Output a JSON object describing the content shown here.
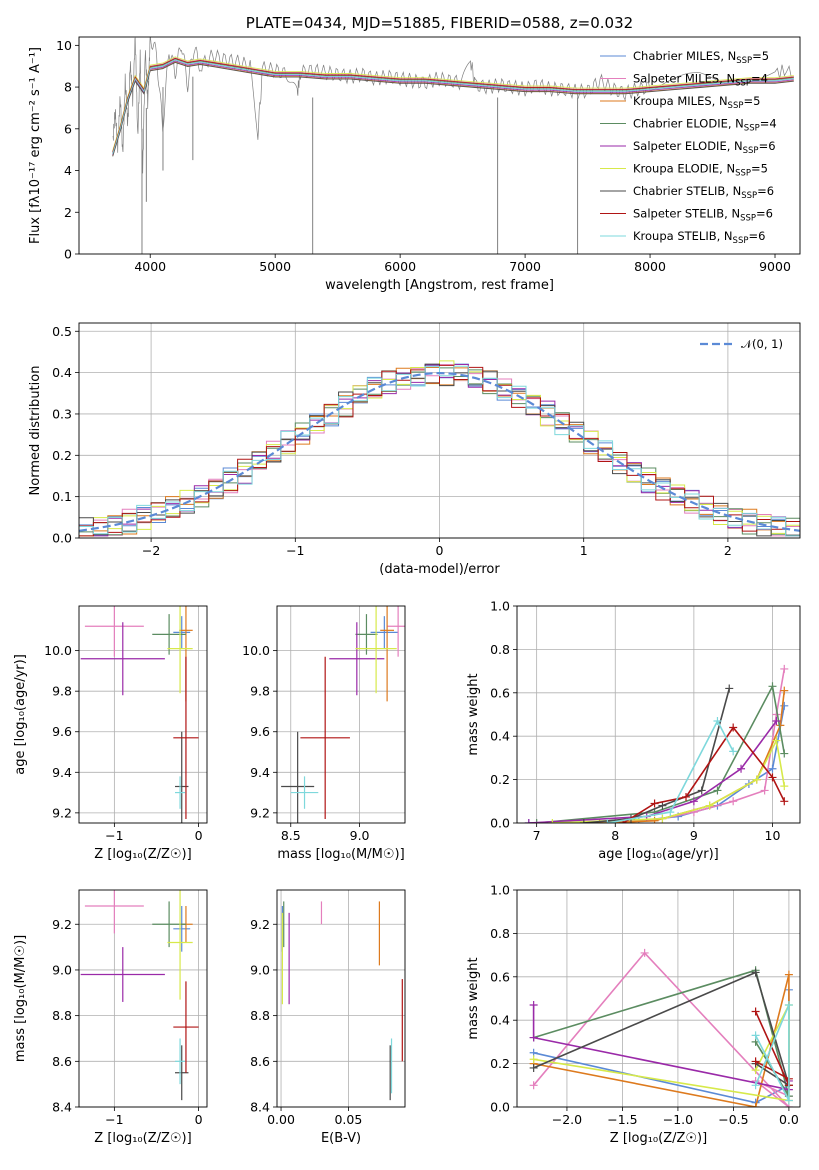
{
  "chart_data": [
    {
      "id": "spectrum",
      "type": "line",
      "title": "PLATE=0434, MJD=51885, FIBERID=0588, z=0.032",
      "xlabel": "wavelength [Angstrom, rest frame]",
      "ylabel": "Flux [fλ10⁻¹⁷ erg cm⁻² s⁻¹ A⁻¹]",
      "xlim": [
        3430,
        9200
      ],
      "ylim": [
        0,
        10.4
      ],
      "xticks": [
        4000,
        5000,
        6000,
        7000,
        8000,
        9000
      ],
      "yticks": [
        0,
        2,
        4,
        6,
        8,
        10
      ],
      "grid": false,
      "legend_position": "top-right",
      "data_color": "#808080",
      "data_x": [
        3700,
        3720,
        3740,
        3760,
        3780,
        3800,
        3820,
        3840,
        3860,
        3880,
        3900,
        3920,
        3940,
        3960,
        3980,
        4000,
        4050,
        4100,
        4150,
        4200,
        4250,
        4300,
        4350,
        4400,
        4500,
        4600,
        4700,
        4800,
        4862,
        4900,
        5000,
        5100,
        5176,
        5200,
        5300,
        5400,
        5500,
        5600,
        5700,
        5800,
        5900,
        6000,
        6100,
        6200,
        6300,
        6400,
        6500,
        6563,
        6600,
        6700,
        6800,
        6900,
        7000,
        7100,
        7200,
        7300,
        7400,
        7500,
        7600,
        7700,
        7800,
        7900,
        8000,
        8200,
        8400,
        8600,
        8800,
        9000,
        9150
      ],
      "data_y": [
        5.4,
        6.8,
        5.2,
        7.5,
        4.8,
        8.3,
        6.2,
        9.1,
        7.4,
        10.4,
        5.6,
        9.5,
        3.9,
        9.8,
        7.2,
        10.4,
        9.6,
        6.0,
        9.8,
        8.7,
        10.1,
        8.1,
        9.9,
        9.0,
        9.5,
        9.3,
        9.2,
        9.0,
        5.8,
        8.9,
        8.8,
        8.6,
        7.6,
        8.7,
        8.8,
        8.7,
        8.6,
        8.5,
        8.6,
        8.4,
        8.5,
        8.4,
        8.3,
        8.2,
        8.4,
        8.3,
        8.2,
        9.3,
        8.1,
        8.0,
        8.1,
        8.0,
        7.9,
        8.1,
        7.9,
        7.9,
        7.8,
        7.8,
        8.3,
        7.9,
        7.7,
        7.9,
        8.0,
        8.2,
        8.4,
        8.3,
        8.6,
        8.7,
        8.8
      ],
      "model_x": [
        3700,
        3760,
        3820,
        3880,
        3950,
        4000,
        4100,
        4200,
        4300,
        4400,
        4500,
        4600,
        4700,
        4800,
        4900,
        5000,
        5200,
        5400,
        5600,
        5800,
        6000,
        6200,
        6400,
        6600,
        6800,
        7000,
        7200,
        7400,
        7600,
        7800,
        8000,
        8200,
        8400,
        8600,
        8800,
        9000,
        9150
      ],
      "model_y": [
        4.8,
        6.0,
        7.4,
        8.4,
        7.8,
        8.9,
        9.0,
        9.3,
        9.1,
        9.2,
        9.1,
        9.0,
        8.9,
        8.8,
        8.7,
        8.6,
        8.6,
        8.5,
        8.5,
        8.4,
        8.3,
        8.3,
        8.2,
        8.1,
        8.0,
        7.9,
        7.9,
        7.8,
        7.8,
        7.8,
        7.9,
        8.0,
        8.1,
        8.2,
        8.3,
        8.3,
        8.4
      ],
      "spikes": [
        {
          "x": 3934,
          "y_low": 0.0,
          "y_high": 6.0
        },
        {
          "x": 3969,
          "y_low": 2.5,
          "y_high": 7.0
        },
        {
          "x": 4102,
          "y_low": 4.0,
          "y_high": 8.0
        },
        {
          "x": 4341,
          "y_low": 4.5,
          "y_high": 8.5
        },
        {
          "x": 5300,
          "y_low": 0.0,
          "y_high": 7.5
        },
        {
          "x": 6780,
          "y_low": 0.0,
          "y_high": 7.5
        },
        {
          "x": 7420,
          "y_low": 0.0,
          "y_high": 7.5
        }
      ],
      "series": [
        {
          "label": "Chabrier MILES, N",
          "sub": "SSP",
          "tail": "=5",
          "color": "#5b8ad6",
          "offset": 0.0
        },
        {
          "label": "Salpeter MILES, N",
          "sub": "SSP",
          "tail": "=4",
          "color": "#e47fbd",
          "offset": 0.1
        },
        {
          "label": "Kroupa MILES, N",
          "sub": "SSP",
          "tail": "=5",
          "color": "#dd7a1e",
          "offset": -0.1
        },
        {
          "label": "Chabrier ELODIE, N",
          "sub": "SSP",
          "tail": "=4",
          "color": "#5b8c61",
          "offset": 0.05
        },
        {
          "label": "Salpeter ELODIE, N",
          "sub": "SSP",
          "tail": "=6",
          "color": "#9a2aa8",
          "offset": -0.05
        },
        {
          "label": "Kroupa ELODIE, N",
          "sub": "SSP",
          "tail": "=5",
          "color": "#d7e94a",
          "offset": 0.15
        },
        {
          "label": "Chabrier STELIB, N",
          "sub": "SSP",
          "tail": "=6",
          "color": "#4a4a4a",
          "offset": -0.12
        },
        {
          "label": "Salpeter STELIB, N",
          "sub": "SSP",
          "tail": "=6",
          "color": "#b01414",
          "offset": 0.08
        },
        {
          "label": "Kroupa STELIB, N",
          "sub": "SSP",
          "tail": "=6",
          "color": "#7ed8dc",
          "offset": 0.0
        }
      ]
    },
    {
      "id": "residuals",
      "type": "histogram",
      "xlabel": "(data-model)/error",
      "ylabel": "Normed distribution",
      "xlim": [
        -2.5,
        2.5
      ],
      "ylim": [
        0,
        0.52
      ],
      "xticks": [
        -2,
        -1,
        0,
        1,
        2
      ],
      "yticks": [
        0.0,
        0.1,
        0.2,
        0.3,
        0.4,
        0.5
      ],
      "grid": true,
      "legend": {
        "label": "𝒩(0, 1)",
        "color": "#5b8ad6",
        "position": "top-right"
      },
      "bin_width": 0.1,
      "jitter": [
        0.012,
        -0.018,
        0.02,
        -0.01,
        0.025,
        -0.022,
        0.008,
        -0.015,
        0.018,
        -0.025,
        0.03,
        -0.012,
        0.015,
        -0.02,
        0.01,
        -0.008,
        0.022,
        -0.03,
        0.005,
        -0.016,
        0.028,
        -0.005,
        0.012,
        -0.024,
        0.019,
        -0.011,
        0.026,
        -0.019,
        0.009,
        -0.027,
        0.016,
        -0.006,
        0.021,
        -0.014,
        0.011,
        -0.021,
        0.024,
        -0.009,
        0.014,
        -0.028,
        0.017,
        -0.013,
        0.029,
        -0.017,
        0.007,
        -0.023,
        0.013,
        -0.004,
        0.02,
        -0.026
      ]
    },
    {
      "id": "age-vs-Z",
      "type": "scatter",
      "xlabel": "Z [log₁₀(Z/Z☉)]",
      "ylabel": "age  [log₁₀(age/yr)]",
      "xlim": [
        -1.42,
        0.1
      ],
      "ylim": [
        9.15,
        10.22
      ],
      "xticks": [
        -1,
        0
      ],
      "yticks": [
        9.2,
        9.4,
        9.6,
        9.8,
        10.0
      ],
      "points": [
        {
          "x": -0.2,
          "y": 10.09,
          "xe": 0.1,
          "ye": 0.08,
          "c": "#5b8ad6"
        },
        {
          "x": -1.0,
          "y": 10.12,
          "xe": 0.35,
          "ye": 0.15,
          "c": "#e47fbd"
        },
        {
          "x": -0.15,
          "y": 10.1,
          "xe": 0.08,
          "ye": 0.35,
          "c": "#dd7a1e"
        },
        {
          "x": -0.35,
          "y": 10.08,
          "xe": 0.2,
          "ye": 0.1,
          "c": "#5b8c61"
        },
        {
          "x": -0.9,
          "y": 9.96,
          "xe": 0.5,
          "ye": 0.18,
          "c": "#9a2aa8"
        },
        {
          "x": -0.22,
          "y": 10.01,
          "xe": 0.15,
          "ye": 0.22,
          "c": "#d7e94a"
        },
        {
          "x": -0.2,
          "y": 9.33,
          "xe": 0.08,
          "ye": 0.27,
          "c": "#4a4a4a"
        },
        {
          "x": -0.15,
          "y": 9.57,
          "xe": 0.15,
          "ye": 0.4,
          "c": "#b01414"
        },
        {
          "x": -0.22,
          "y": 9.3,
          "xe": 0.06,
          "ye": 0.08,
          "c": "#7ed8dc"
        }
      ]
    },
    {
      "id": "age-vs-mass",
      "type": "scatter",
      "xlabel": "mass [log₁₀(M/M☉)]",
      "ylabel": "",
      "xlim": [
        8.4,
        9.33
      ],
      "ylim": [
        9.15,
        10.22
      ],
      "xticks": [
        8.5,
        9.0
      ],
      "yticks": [
        9.2,
        9.4,
        9.6,
        9.8,
        10.0
      ],
      "points": [
        {
          "x": 9.18,
          "y": 10.09,
          "xe": 0.1,
          "ye": 0.08,
          "c": "#5b8ad6"
        },
        {
          "x": 9.28,
          "y": 10.12,
          "xe": 0.08,
          "ye": 0.15,
          "c": "#e47fbd"
        },
        {
          "x": 9.2,
          "y": 10.1,
          "xe": 0.05,
          "ye": 0.35,
          "c": "#dd7a1e"
        },
        {
          "x": 9.05,
          "y": 10.08,
          "xe": 0.08,
          "ye": 0.1,
          "c": "#5b8c61"
        },
        {
          "x": 8.98,
          "y": 9.96,
          "xe": 0.2,
          "ye": 0.18,
          "c": "#9a2aa8"
        },
        {
          "x": 9.12,
          "y": 10.01,
          "xe": 0.15,
          "ye": 0.22,
          "c": "#d7e94a"
        },
        {
          "x": 8.55,
          "y": 9.33,
          "xe": 0.12,
          "ye": 0.27,
          "c": "#4a4a4a"
        },
        {
          "x": 8.75,
          "y": 9.57,
          "xe": 0.18,
          "ye": 0.4,
          "c": "#b01414"
        },
        {
          "x": 8.6,
          "y": 9.3,
          "xe": 0.1,
          "ye": 0.08,
          "c": "#7ed8dc"
        }
      ]
    },
    {
      "id": "weight-vs-age",
      "type": "line",
      "xlabel": "age  [log₁₀(age/yr)]",
      "ylabel": "mass weight",
      "xlim": [
        6.75,
        10.35
      ],
      "ylim": [
        0,
        1.0
      ],
      "xticks": [
        7,
        8,
        9,
        10
      ],
      "yticks": [
        0.0,
        0.2,
        0.4,
        0.6,
        0.8,
        1.0
      ],
      "grid": true,
      "series": [
        {
          "c": "#5b8ad6",
          "x": [
            6.9,
            8.3,
            8.8,
            9.3,
            9.7,
            10.0,
            10.15
          ],
          "y": [
            0.0,
            0.01,
            0.03,
            0.08,
            0.18,
            0.25,
            0.54
          ]
        },
        {
          "c": "#e47fbd",
          "x": [
            8.0,
            8.6,
            9.0,
            9.5,
            9.9,
            10.05,
            10.15
          ],
          "y": [
            0.0,
            0.02,
            0.05,
            0.1,
            0.15,
            0.5,
            0.71
          ]
        },
        {
          "c": "#dd7a1e",
          "x": [
            7.8,
            8.5,
            9.2,
            9.8,
            10.1,
            10.15
          ],
          "y": [
            0.0,
            0.01,
            0.08,
            0.2,
            0.45,
            0.61
          ]
        },
        {
          "c": "#5b8c61",
          "x": [
            7.0,
            8.5,
            9.3,
            10.0,
            10.15
          ],
          "y": [
            0.0,
            0.05,
            0.15,
            0.63,
            0.32
          ]
        },
        {
          "c": "#9a2aa8",
          "x": [
            6.9,
            8.4,
            9.0,
            9.6,
            10.05
          ],
          "y": [
            0.0,
            0.03,
            0.1,
            0.25,
            0.47
          ]
        },
        {
          "c": "#d7e94a",
          "x": [
            7.2,
            8.6,
            9.2,
            9.8,
            10.05,
            10.15
          ],
          "y": [
            0.0,
            0.02,
            0.08,
            0.2,
            0.38,
            0.17
          ]
        },
        {
          "c": "#4a4a4a",
          "x": [
            7.6,
            8.2,
            8.6,
            9.1,
            9.45
          ],
          "y": [
            0.0,
            0.02,
            0.08,
            0.15,
            0.62
          ]
        },
        {
          "c": "#b01414",
          "x": [
            8.1,
            8.5,
            8.9,
            9.5,
            10.0,
            10.15
          ],
          "y": [
            0.0,
            0.09,
            0.12,
            0.44,
            0.21,
            0.1
          ]
        },
        {
          "c": "#7ed8dc",
          "x": [
            7.9,
            8.7,
            9.3,
            9.5
          ],
          "y": [
            0.0,
            0.05,
            0.47,
            0.33
          ]
        }
      ]
    },
    {
      "id": "mass-vs-Z",
      "type": "scatter",
      "xlabel": "Z [log₁₀(Z/Z☉)]",
      "ylabel": "mass [log₁₀(M/M☉)]",
      "xlim": [
        -1.42,
        0.1
      ],
      "ylim": [
        8.4,
        9.35
      ],
      "xticks": [
        -1,
        0
      ],
      "yticks": [
        8.4,
        8.6,
        8.8,
        9.0,
        9.2
      ],
      "points": [
        {
          "x": -0.2,
          "y": 9.18,
          "xe": 0.1,
          "ye": 0.1,
          "c": "#5b8ad6"
        },
        {
          "x": -1.0,
          "y": 9.28,
          "xe": 0.35,
          "ye": 0.12,
          "c": "#e47fbd"
        },
        {
          "x": -0.15,
          "y": 9.2,
          "xe": 0.08,
          "ye": 0.08,
          "c": "#dd7a1e"
        },
        {
          "x": -0.35,
          "y": 9.2,
          "xe": 0.2,
          "ye": 0.1,
          "c": "#5b8c61"
        },
        {
          "x": -0.9,
          "y": 8.98,
          "xe": 0.5,
          "ye": 0.12,
          "c": "#9a2aa8"
        },
        {
          "x": -0.22,
          "y": 9.12,
          "xe": 0.15,
          "ye": 0.25,
          "c": "#d7e94a"
        },
        {
          "x": -0.2,
          "y": 8.55,
          "xe": 0.08,
          "ye": 0.12,
          "c": "#4a4a4a"
        },
        {
          "x": -0.15,
          "y": 8.75,
          "xe": 0.15,
          "ye": 0.2,
          "c": "#b01414"
        },
        {
          "x": -0.22,
          "y": 8.6,
          "xe": 0.06,
          "ye": 0.1,
          "c": "#7ed8dc"
        }
      ]
    },
    {
      "id": "mass-vs-ebv",
      "type": "scatter",
      "xlabel": "E(B-V)",
      "ylabel": "",
      "xlim": [
        -0.003,
        0.092
      ],
      "ylim": [
        8.4,
        9.35
      ],
      "xticks": [
        0.0,
        0.05
      ],
      "tick_labels": [
        "0.00",
        "0.05"
      ],
      "yticks": [
        8.4,
        8.6,
        8.8,
        9.0,
        9.2
      ],
      "points": [
        {
          "x": 0.001,
          "y": 9.18,
          "xe": 0,
          "ye": 0.1,
          "c": "#5b8ad6"
        },
        {
          "x": 0.03,
          "y": 9.25,
          "xe": 0,
          "ye": 0.05,
          "c": "#e47fbd"
        },
        {
          "x": 0.073,
          "y": 9.16,
          "xe": 0,
          "ye": 0.14,
          "c": "#dd7a1e"
        },
        {
          "x": 0.002,
          "y": 9.2,
          "xe": 0,
          "ye": 0.1,
          "c": "#5b8c61"
        },
        {
          "x": 0.006,
          "y": 9.05,
          "xe": 0,
          "ye": 0.2,
          "c": "#9a2aa8"
        },
        {
          "x": 0.001,
          "y": 9.05,
          "xe": 0,
          "ye": 0.2,
          "c": "#d7e94a"
        },
        {
          "x": 0.081,
          "y": 8.55,
          "xe": 0,
          "ye": 0.12,
          "c": "#4a4a4a"
        },
        {
          "x": 0.09,
          "y": 8.78,
          "xe": 0,
          "ye": 0.18,
          "c": "#b01414"
        },
        {
          "x": 0.082,
          "y": 8.58,
          "xe": 0,
          "ye": 0.12,
          "c": "#7ed8dc"
        }
      ]
    },
    {
      "id": "weight-vs-Z",
      "type": "line",
      "xlabel": "Z [log₁₀(Z/Z☉)]",
      "ylabel": "mass weight",
      "xlim": [
        -2.45,
        0.1
      ],
      "ylim": [
        0,
        1.0
      ],
      "xticks": [
        -2.0,
        -1.5,
        -1.0,
        -0.5,
        0.0
      ],
      "yticks": [
        0.0,
        0.2,
        0.4,
        0.6,
        0.8,
        1.0
      ],
      "grid": true,
      "series": [
        {
          "c": "#5b8ad6",
          "x": [
            -2.3,
            -0.3,
            0.0,
            0.0
          ],
          "y": [
            0.25,
            0.02,
            0.1,
            0.54
          ]
        },
        {
          "c": "#e47fbd",
          "x": [
            -2.3,
            -1.3,
            0.0,
            -0.3,
            0.0
          ],
          "y": [
            0.1,
            0.71,
            0.0,
            0.12,
            0.05
          ]
        },
        {
          "c": "#dd7a1e",
          "x": [
            -2.3,
            -0.3,
            0.0,
            0.0
          ],
          "y": [
            0.2,
            0.0,
            0.61,
            0.1
          ]
        },
        {
          "c": "#5b8c61",
          "x": [
            -2.3,
            -0.3,
            0.0,
            -0.3
          ],
          "y": [
            0.32,
            0.63,
            0.05,
            0.3
          ]
        },
        {
          "c": "#9a2aa8",
          "x": [
            -2.3,
            -2.3,
            0.0,
            0.0
          ],
          "y": [
            0.47,
            0.32,
            0.08,
            0.12
          ]
        },
        {
          "c": "#d7e94a",
          "x": [
            -2.3,
            0.0,
            0.0,
            -0.3
          ],
          "y": [
            0.22,
            0.03,
            0.47,
            0.17
          ]
        },
        {
          "c": "#4a4a4a",
          "x": [
            -2.3,
            -0.3,
            0.0,
            -0.3
          ],
          "y": [
            0.18,
            0.62,
            0.1,
            0.2
          ]
        },
        {
          "c": "#b01414",
          "x": [
            -0.3,
            0.0,
            0.0,
            -0.3
          ],
          "y": [
            0.44,
            0.1,
            0.13,
            0.21
          ]
        },
        {
          "c": "#7ed8dc",
          "x": [
            -0.3,
            0.0,
            0.0,
            -0.3
          ],
          "y": [
            0.33,
            0.03,
            0.47,
            0.1
          ]
        }
      ]
    }
  ]
}
